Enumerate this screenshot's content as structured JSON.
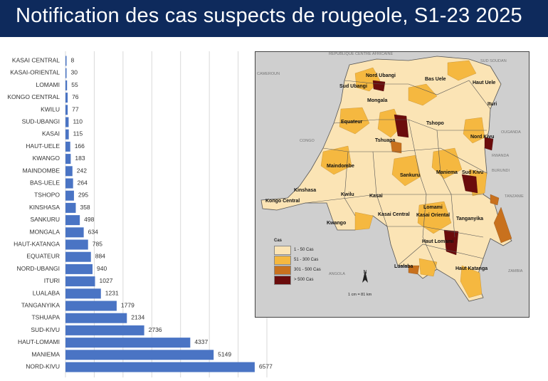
{
  "header": {
    "title": "Notification des cas suspects de rougeole, S1-23 2025"
  },
  "colors": {
    "bar": "#4a74c4",
    "header_bg": "#0e2a5c",
    "grid": "#d9d9d9",
    "cat1": "#fbe4b5",
    "cat2": "#f5b840",
    "cat3": "#c8711e",
    "cat4": "#6b0c0c"
  },
  "chart_data": {
    "type": "bar",
    "orientation": "horizontal",
    "categories": [
      "KASAI CENTRAL",
      "KASAI-ORIENTAL",
      "LOMAMI",
      "KONGO CENTRAL",
      "KWILU",
      "SUD-UBANGI",
      "KASAI",
      "HAUT-UELE",
      "KWANGO",
      "MAINDOMBE",
      "BAS-UELE",
      "TSHOPO",
      "KINSHASA",
      "SANKURU",
      "MONGALA",
      "HAUT-KATANGA",
      "EQUATEUR",
      "NORD-UBANGI",
      "ITURI",
      "LUALABA",
      "TANGANYIKA",
      "TSHUAPA",
      "SUD-KIVU",
      "HAUT-LOMAMI",
      "MANIEMA",
      "NORD-KIVU"
    ],
    "values": [
      8,
      30,
      55,
      76,
      77,
      110,
      115,
      166,
      183,
      242,
      264,
      295,
      358,
      498,
      634,
      785,
      884,
      940,
      1027,
      1231,
      1779,
      2134,
      2736,
      4337,
      5149,
      6577
    ],
    "xlim": [
      0,
      7000
    ],
    "grid": true
  },
  "map": {
    "neighbors": [
      "REPUBLIQUE CENTRE AFRICAINE",
      "SUD SOUDAN",
      "CAMEROUN",
      "OUGANDA",
      "CONGO",
      "RWANDA",
      "BURUNDI",
      "TANZANIE",
      "ANGOLA",
      "ZAMBIA"
    ],
    "provinces": [
      "Nord Ubangi",
      "Sud Ubangi",
      "Bas Uele",
      "Haut Uele",
      "Mongala",
      "Ituri",
      "Equateur",
      "Tshopo",
      "Nord Kivu",
      "Tshuapa",
      "Maindombe",
      "Sankuru",
      "Maniema",
      "Sud Kivu",
      "Kinshasa",
      "Kwilu",
      "Kasai",
      "Kongo Central",
      "Lomami",
      "Kasai Central",
      "Kasai Oriental",
      "Tanganyika",
      "Kwango",
      "Haut Lomami",
      "Lualaba",
      "Haut Katanga"
    ],
    "legend": {
      "title": "Cas",
      "items": [
        {
          "label": "1 - 50 Cas",
          "color": "#fbe4b5"
        },
        {
          "label": "51 - 300 Cas",
          "color": "#f5b840"
        },
        {
          "label": "301 - 500 Cas",
          "color": "#c8711e"
        },
        {
          "label": "> 500 Cas",
          "color": "#6b0c0c"
        }
      ]
    },
    "north_label": "N",
    "scale_label": "1 cm = 81 km"
  }
}
